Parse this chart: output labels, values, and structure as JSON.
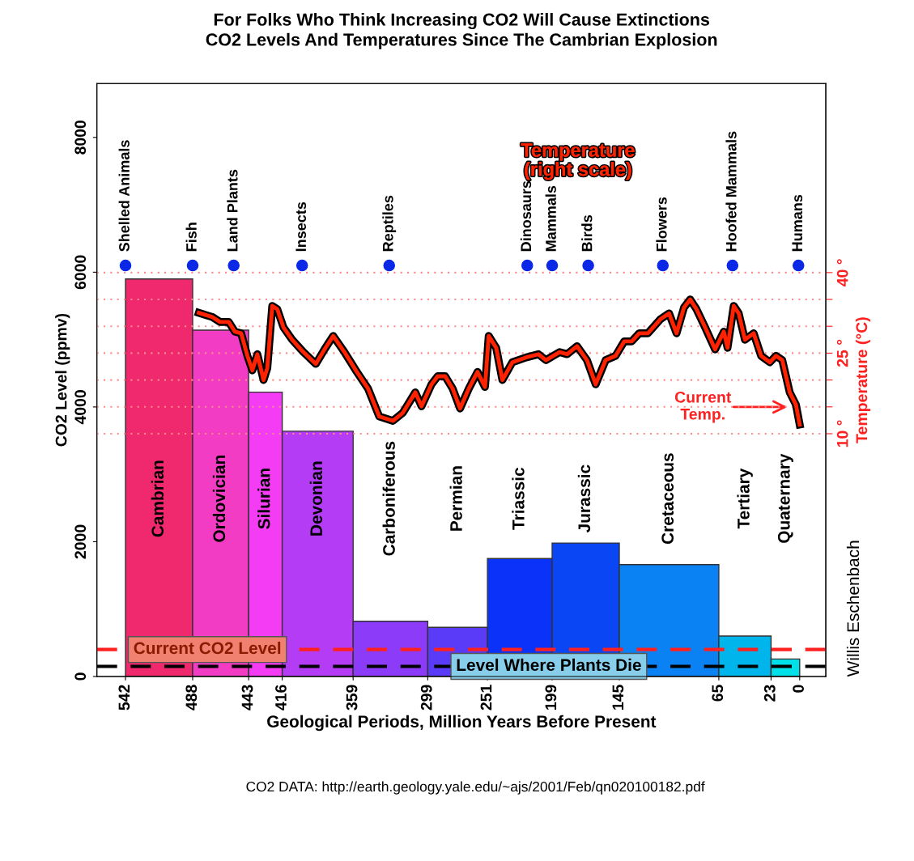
{
  "chart_data": {
    "type": "histogram",
    "title": "For Folks Who Think Increasing CO2 Will Cause Extinctions\nCO2 Levels And Temperatures Since The Cambrian Explosion",
    "xlabel": "Geological Periods, Million Years Before Present",
    "ylabel": "CO2 Level (ppmv)",
    "y2label": "Temperature (°C)",
    "xlim": [
      565,
      -21
    ],
    "xticks": [
      542,
      488,
      443,
      416,
      359,
      299,
      251,
      199,
      145,
      65,
      23,
      0
    ],
    "ylim": [
      0,
      8800
    ],
    "yticks": [
      0,
      2000,
      4000,
      6000,
      8000
    ],
    "y2lim": [
      -35.2,
      75.2
    ],
    "y2ticks": [
      {
        "value": 10,
        "label": "10 °"
      },
      {
        "value": 15,
        "label": null
      },
      {
        "value": 20,
        "label": null
      },
      {
        "value": 25,
        "label": "25 °"
      },
      {
        "value": 30,
        "label": null
      },
      {
        "value": 35,
        "label": null
      },
      {
        "value": 40,
        "label": "40 °"
      }
    ],
    "series": [
      {
        "bins": [
          542,
          488,
          443,
          416,
          359,
          299,
          251,
          199,
          145,
          65,
          23,
          0
        ],
        "values": [
          5900,
          5140,
          4220,
          3640,
          820,
          730,
          1750,
          1980,
          1660,
          600,
          260
        ],
        "colors": [
          "#f0286e",
          "#f23cc4",
          "#f43cf4",
          "#b43cf4",
          "#8c3cf8",
          "#5a3cf8",
          "#0a32f8",
          "#0a46f4",
          "#0a82f4",
          "#00b4ec",
          "#00e0e8"
        ]
      },
      {
        "type": "line",
        "axis": "y2",
        "name": "Temperature\n(right scale)",
        "color": "#ff2200",
        "x": [
          483,
          472,
          466,
          459,
          454,
          449,
          444,
          440,
          436,
          431,
          428,
          424,
          420,
          415,
          408,
          399,
          389,
          382,
          375,
          366,
          356,
          347,
          338,
          327,
          319,
          309,
          304,
          296,
          291,
          285,
          279,
          273,
          266,
          259,
          253,
          250,
          244,
          239,
          231,
          220,
          210,
          204,
          193,
          187,
          179,
          171,
          164,
          156,
          148,
          141,
          135,
          129,
          122,
          112,
          105,
          99,
          93,
          88,
          83,
          76,
          68,
          61,
          58,
          53,
          49,
          44,
          37,
          31,
          24,
          19,
          14,
          8,
          3,
          0
        ],
        "values": [
          32.5,
          31.7,
          30.8,
          30.8,
          29.0,
          28.7,
          24.5,
          21.8,
          24.8,
          20.0,
          22.2,
          33.8,
          33.2,
          29.8,
          27.5,
          25.2,
          23.0,
          25.7,
          28.2,
          25.2,
          21.5,
          18.4,
          13.2,
          12.4,
          13.9,
          17.7,
          15.1,
          19.2,
          20.7,
          20.7,
          18.4,
          14.7,
          18.4,
          21.5,
          18.7,
          28.2,
          26.0,
          20.0,
          23.3,
          24.2,
          24.8,
          23.7,
          25.2,
          24.8,
          26.3,
          23.7,
          19.2,
          23.7,
          24.5,
          27.2,
          27.2,
          28.7,
          28.7,
          31.3,
          32.4,
          28.7,
          33.5,
          35.0,
          33.2,
          29.8,
          25.7,
          29.0,
          26.0,
          33.8,
          32.4,
          27.5,
          28.7,
          24.5,
          23.3,
          24.5,
          23.7,
          17.7,
          15.4,
          11.7
        ]
      },
      {
        "type": "scatter",
        "color": "#0a28e6",
        "marker": "circle",
        "x": [
          542,
          488,
          455,
          400,
          330,
          219,
          199,
          170,
          110,
          54,
          1
        ],
        "values": [
          6100,
          6100,
          6100,
          6100,
          6100,
          6100,
          6100,
          6100,
          6100,
          6100,
          6100
        ]
      }
    ],
    "ref_lines": [
      {
        "axis": "y",
        "value": 400,
        "label": "Current CO2 Level",
        "color": "#ff2020",
        "line_style": "dashed"
      },
      {
        "axis": "y",
        "value": 150,
        "label": "Level Where Plants Die",
        "color": "#000000",
        "line_style": "dashed"
      },
      {
        "axis": "y2",
        "value": 10,
        "color": "#ff8c8c",
        "line_style": "dotted"
      },
      {
        "axis": "y2",
        "value": 15,
        "color": "#ff8c8c",
        "line_style": "dotted"
      },
      {
        "axis": "y2",
        "value": 20,
        "color": "#ff8c8c",
        "line_style": "dotted"
      },
      {
        "axis": "y2",
        "value": 25,
        "color": "#ff8c8c",
        "line_style": "dotted"
      },
      {
        "axis": "y2",
        "value": 30,
        "color": "#ff8c8c",
        "line_style": "dotted"
      },
      {
        "axis": "y2",
        "value": 35,
        "color": "#ff8c8c",
        "line_style": "dotted"
      },
      {
        "axis": "y2",
        "value": 40,
        "color": "#ff8c8c",
        "line_style": "dotted"
      }
    ],
    "annotations": [
      {
        "text": "Shelled Animals",
        "x": 542,
        "y": 6100
      },
      {
        "text": "Fish",
        "x": 488,
        "y": 6100
      },
      {
        "text": "Land Plants",
        "x": 455,
        "y": 6100
      },
      {
        "text": "Insects",
        "x": 400,
        "y": 6100
      },
      {
        "text": "Reptiles",
        "x": 330,
        "y": 6100
      },
      {
        "text": "Dinosaurs",
        "x": 219,
        "y": 6100
      },
      {
        "text": "Mammals",
        "x": 199,
        "y": 6100
      },
      {
        "text": "Birds",
        "x": 170,
        "y": 6100
      },
      {
        "text": "Flowers",
        "x": 110,
        "y": 6100
      },
      {
        "text": "Hoofed Mammals",
        "x": 54,
        "y": 6100
      },
      {
        "text": "Humans",
        "x": 1,
        "y": 6100
      },
      "Cambrian",
      "Ordovician",
      "Silurian",
      "Devonian",
      "Carboniferous",
      "Permian",
      "Triassic",
      "Jurassic",
      "Cretaceous",
      "Tertiary",
      "Quaternary",
      {
        "text": "Current\nTemp.",
        "x": 10,
        "y": 4000
      },
      "Willis Eschenbach",
      "CO2 DATA: http://earth.geology.yale.edu/~ajs/2001/Feb/qn020100182.pdf"
    ],
    "grid": false
  }
}
